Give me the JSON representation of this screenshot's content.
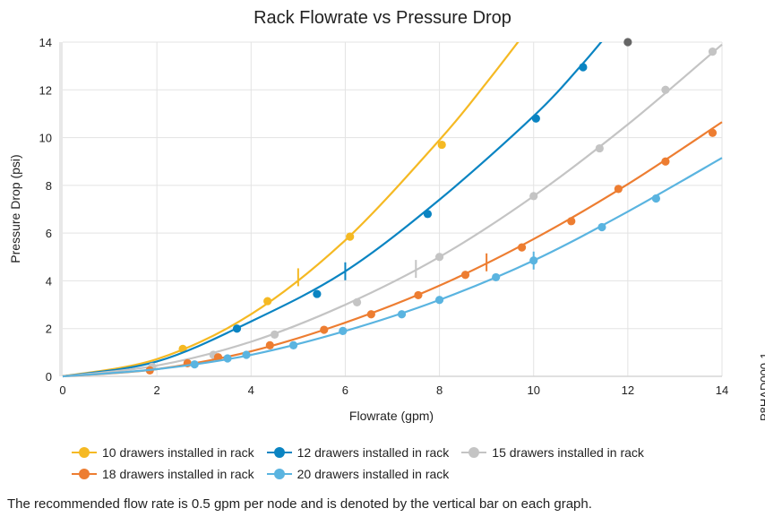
{
  "chart_data": {
    "type": "line",
    "title": "Rack Flowrate vs Pressure Drop",
    "xlabel": "Flowrate (gpm)",
    "ylabel": "Pressure Drop (psi)",
    "xlim": [
      0,
      14
    ],
    "ylim": [
      0,
      14
    ],
    "xticks": [
      0,
      2,
      4,
      6,
      8,
      10,
      12,
      14
    ],
    "yticks": [
      0,
      2,
      4,
      6,
      8,
      10,
      12,
      14
    ],
    "grid": true,
    "legend_position": "bottom",
    "series": [
      {
        "name": "10 drawers installed in rack",
        "color": "#f5b923",
        "curve": [
          [
            0,
            0
          ],
          [
            2,
            0.72
          ],
          [
            4,
            2.6
          ],
          [
            6,
            5.7
          ],
          [
            8,
            9.9
          ],
          [
            9,
            12.3
          ],
          [
            9.9,
            14.6
          ]
        ],
        "points": [
          [
            2.55,
            1.15
          ],
          [
            4.35,
            3.15
          ],
          [
            6.1,
            5.85
          ],
          [
            8.05,
            9.7
          ]
        ],
        "recommended_flow": 5.0
      },
      {
        "name": "12 drawers installed in rack",
        "color": "#0a84c2",
        "curve": [
          [
            0,
            0
          ],
          [
            2,
            0.62
          ],
          [
            4,
            2.3
          ],
          [
            6,
            4.4
          ],
          [
            8,
            7.4
          ],
          [
            10,
            10.9
          ],
          [
            11,
            13.0
          ],
          [
            11.6,
            14.4
          ]
        ],
        "points": [
          [
            3.7,
            2.0
          ],
          [
            5.4,
            3.45
          ],
          [
            7.75,
            6.8
          ],
          [
            10.05,
            10.8
          ],
          [
            11.05,
            12.95
          ]
        ],
        "recommended_flow": 6.0
      },
      {
        "name": "15 drawers installed in rack",
        "color": "#c4c4c4",
        "curve": [
          [
            0,
            0
          ],
          [
            2,
            0.45
          ],
          [
            4,
            1.45
          ],
          [
            6,
            3.0
          ],
          [
            8,
            5.0
          ],
          [
            10,
            7.55
          ],
          [
            12,
            10.55
          ],
          [
            14,
            13.9
          ]
        ],
        "points": [
          [
            1.9,
            0.4
          ],
          [
            3.2,
            0.9
          ],
          [
            4.5,
            1.75
          ],
          [
            6.25,
            3.1
          ],
          [
            8.0,
            5.0
          ],
          [
            10.0,
            7.55
          ],
          [
            11.4,
            9.55
          ],
          [
            12.8,
            12.0
          ],
          [
            13.8,
            13.6
          ]
        ],
        "recommended_flow": 7.5
      },
      {
        "name": "18 drawers installed in rack",
        "color": "#ed7d31",
        "curve": [
          [
            0,
            0
          ],
          [
            2,
            0.3
          ],
          [
            4,
            1.05
          ],
          [
            6,
            2.25
          ],
          [
            8,
            3.8
          ],
          [
            10,
            5.75
          ],
          [
            12,
            8.05
          ],
          [
            14,
            10.65
          ]
        ],
        "points": [
          [
            1.85,
            0.25
          ],
          [
            2.65,
            0.55
          ],
          [
            3.3,
            0.8
          ],
          [
            4.4,
            1.3
          ],
          [
            5.55,
            1.95
          ],
          [
            6.55,
            2.6
          ],
          [
            7.55,
            3.4
          ],
          [
            8.55,
            4.25
          ],
          [
            9.75,
            5.4
          ],
          [
            10.8,
            6.5
          ],
          [
            11.8,
            7.85
          ],
          [
            12.8,
            9.0
          ],
          [
            13.8,
            10.2
          ]
        ],
        "recommended_flow": 9.0
      },
      {
        "name": "20 drawers installed in rack",
        "color": "#5ab4e0",
        "curve": [
          [
            0,
            0
          ],
          [
            2,
            0.3
          ],
          [
            4,
            0.9
          ],
          [
            6,
            1.9
          ],
          [
            8,
            3.2
          ],
          [
            10,
            4.85
          ],
          [
            12,
            6.9
          ],
          [
            14,
            9.15
          ]
        ],
        "points": [
          [
            2.8,
            0.5
          ],
          [
            3.5,
            0.75
          ],
          [
            3.9,
            0.9
          ],
          [
            4.9,
            1.3
          ],
          [
            5.95,
            1.9
          ],
          [
            7.2,
            2.6
          ],
          [
            8.0,
            3.2
          ],
          [
            9.2,
            4.15
          ],
          [
            10.0,
            4.85
          ],
          [
            11.45,
            6.25
          ],
          [
            12.6,
            7.45
          ]
        ],
        "recommended_flow": 10.0
      }
    ],
    "extra_points": [
      {
        "x": 12.0,
        "y": 14.0,
        "color": "#666666"
      }
    ]
  },
  "footnote": "The recommended flow rate is 0.5 gpm per node and is denoted by the vertical bar on each graph.",
  "figure_id": "P8HAD000-1"
}
